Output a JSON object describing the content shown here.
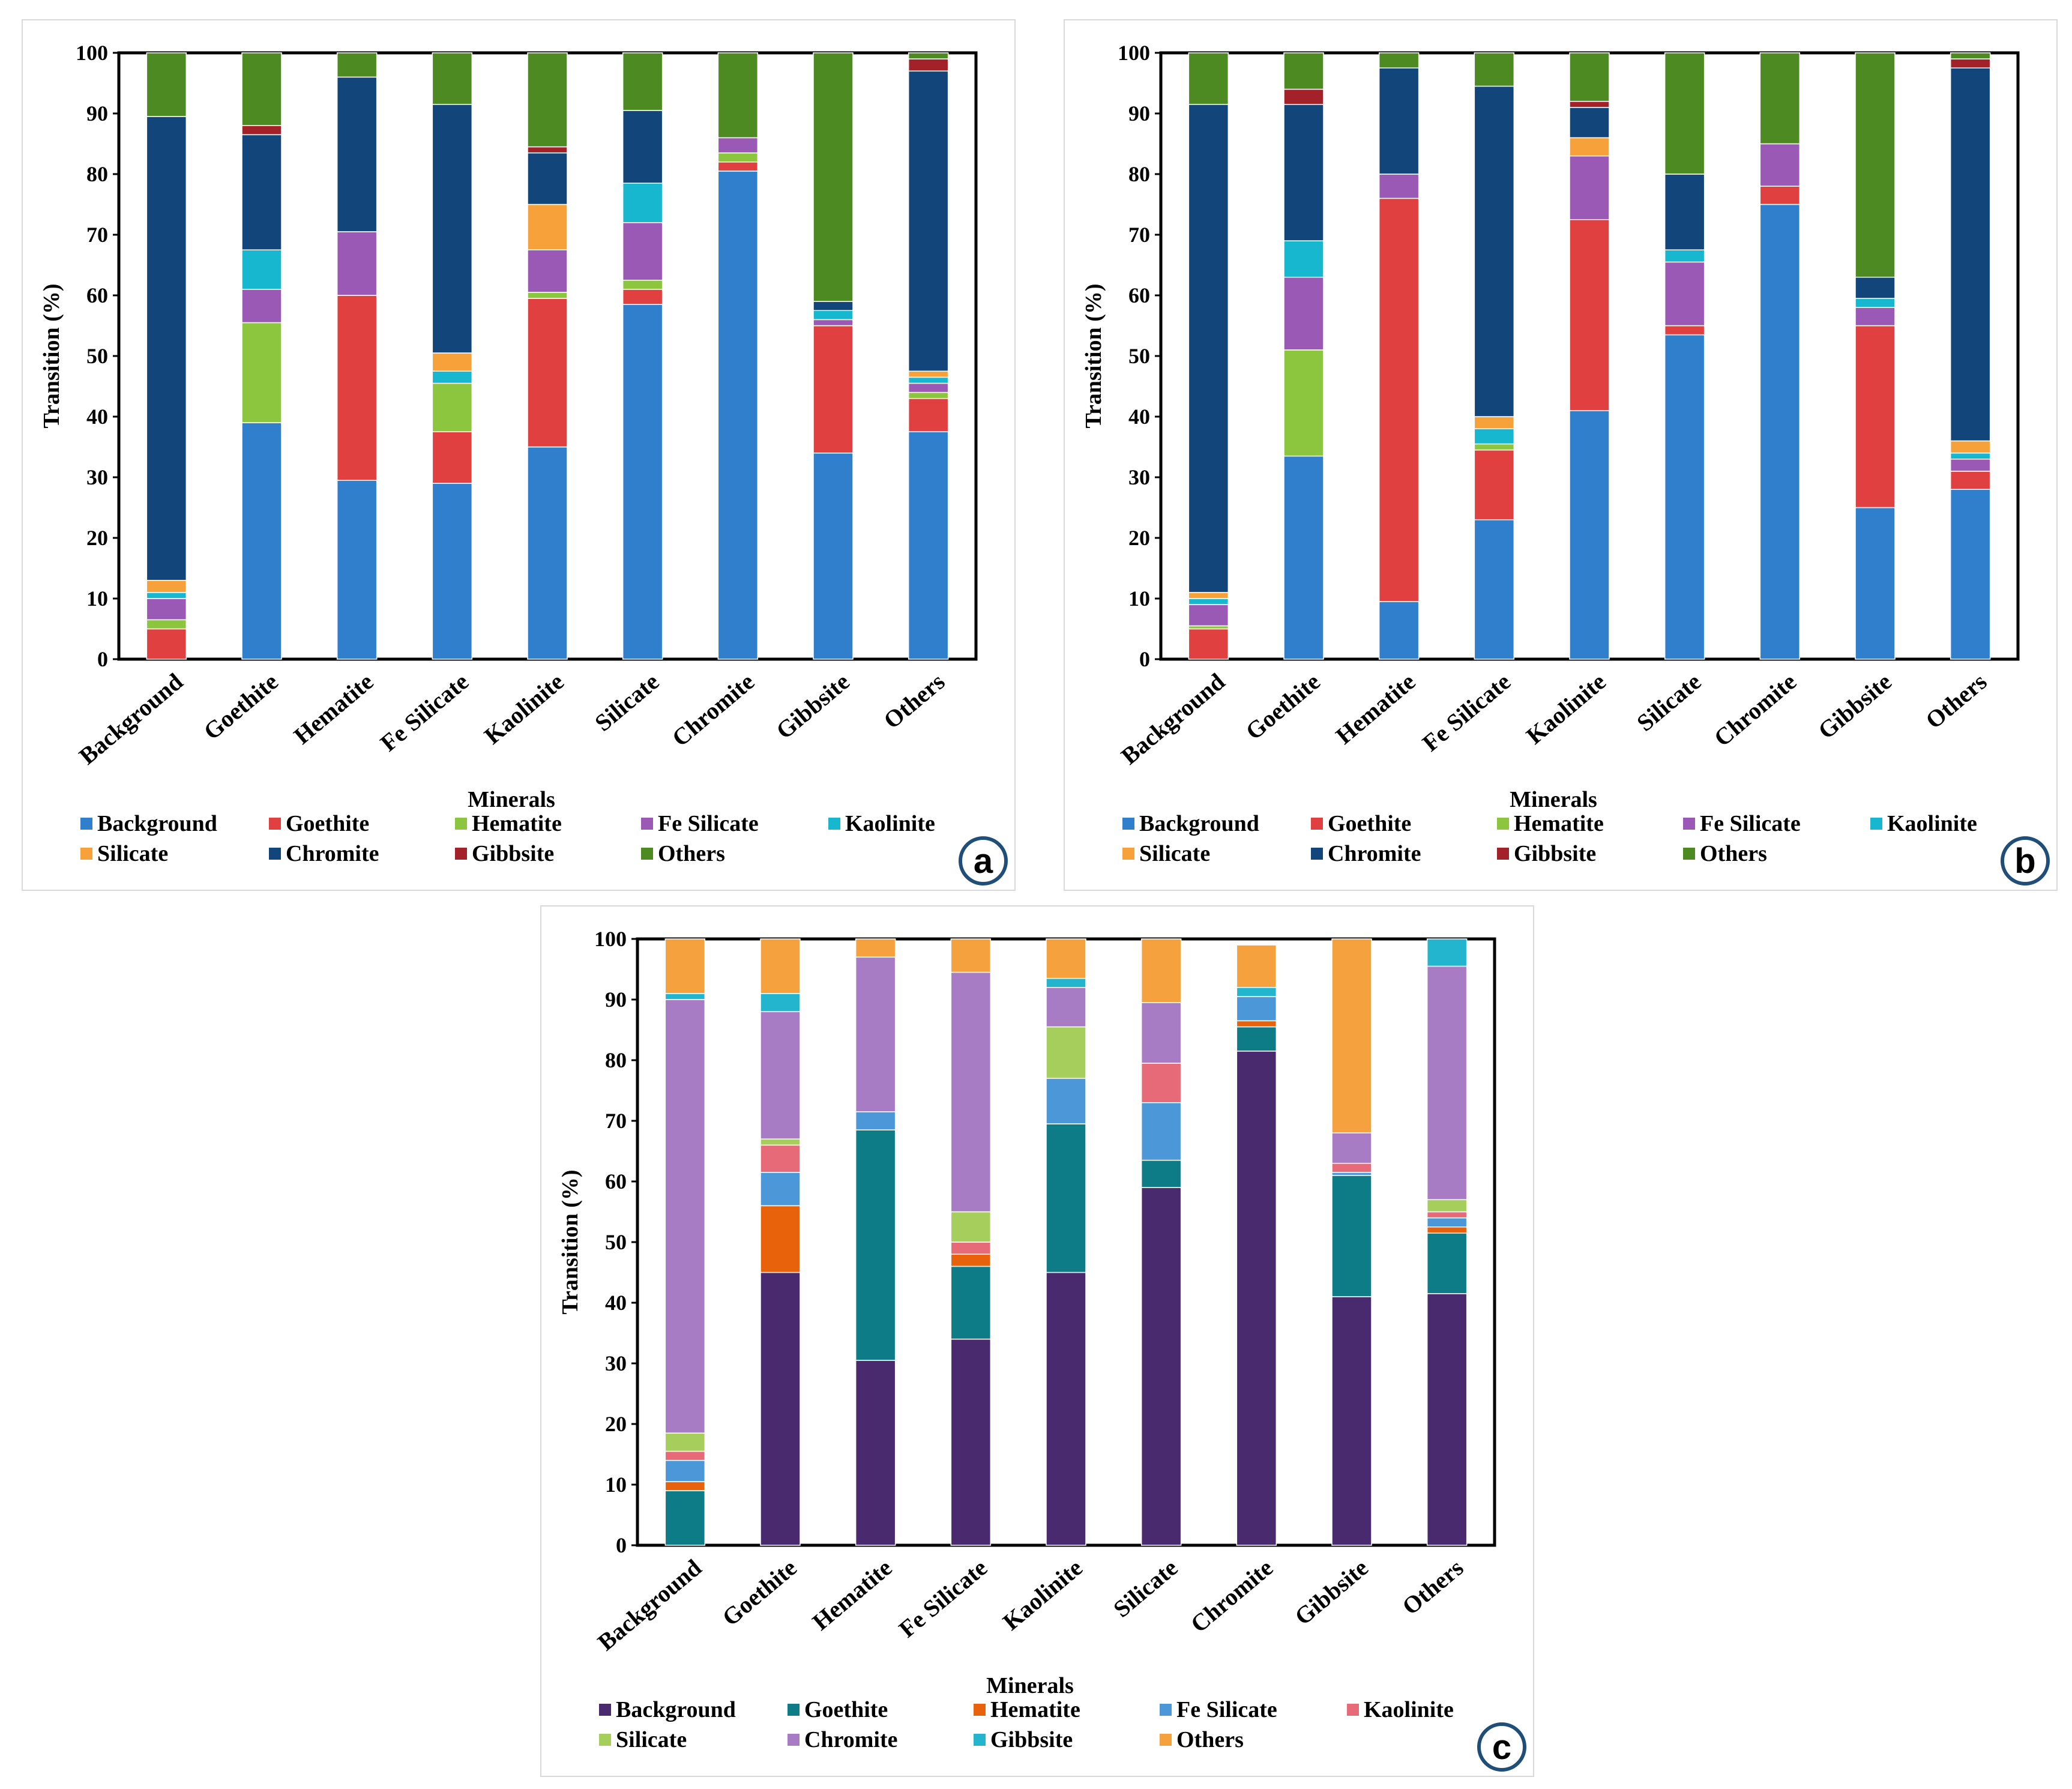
{
  "chart_data": [
    {
      "id": "a",
      "type": "bar",
      "stacked": true,
      "panel_label": "a",
      "xlabel": "Minerals",
      "ylabel": "Transition (%)",
      "ylim": [
        0,
        100
      ],
      "yticks": [
        0,
        10,
        20,
        30,
        40,
        50,
        60,
        70,
        80,
        90,
        100
      ],
      "categories": [
        "Background",
        "Goethite",
        "Hematite",
        "Fe Silicate",
        "Kaolinite",
        "Silicate",
        "Chromite",
        "Gibbsite",
        "Others"
      ],
      "series": [
        {
          "name": "Background",
          "color": "#2F7FCC",
          "values": [
            0,
            39,
            29.5,
            29,
            35,
            58.5,
            80.5,
            34,
            37.5
          ]
        },
        {
          "name": "Goethite",
          "color": "#E04040",
          "values": [
            5,
            0,
            30.5,
            8.5,
            24.5,
            2.5,
            1.5,
            21,
            5.5
          ]
        },
        {
          "name": "Hematite",
          "color": "#8CC63F",
          "values": [
            1.5,
            16.5,
            0,
            8,
            1,
            1.5,
            1.5,
            0,
            1
          ]
        },
        {
          "name": "Fe Silicate",
          "color": "#9B59B6",
          "values": [
            3.5,
            5.5,
            10.5,
            0,
            7,
            9.5,
            2.5,
            1,
            1.5
          ]
        },
        {
          "name": "Kaolinite",
          "color": "#17B7CF",
          "values": [
            1,
            6.5,
            0,
            2,
            0,
            6.5,
            0,
            1.5,
            1
          ]
        },
        {
          "name": "Silicate",
          "color": "#F7A13A",
          "values": [
            2,
            0,
            0,
            3,
            7.5,
            0,
            0,
            0,
            1
          ]
        },
        {
          "name": "Chromite",
          "color": "#12457A",
          "values": [
            76.5,
            19,
            25.5,
            41,
            8.5,
            12,
            0,
            1.5,
            49.5
          ]
        },
        {
          "name": "Gibbsite",
          "color": "#A3222A",
          "values": [
            0,
            1.5,
            0,
            0,
            1,
            0,
            0,
            0,
            2
          ]
        },
        {
          "name": "Others",
          "color": "#4E8A22",
          "values": [
            10.5,
            12,
            4,
            8.5,
            15.5,
            9.5,
            14,
            41,
            1
          ]
        }
      ],
      "legend": [
        "Background",
        "Goethite",
        "Hematite",
        "Fe Silicate",
        "Kaolinite",
        "Silicate",
        "Chromite",
        "Gibbsite",
        "Others"
      ]
    },
    {
      "id": "b",
      "type": "bar",
      "stacked": true,
      "panel_label": "b",
      "xlabel": "Minerals",
      "ylabel": "Transition (%)",
      "ylim": [
        0,
        100
      ],
      "yticks": [
        0,
        10,
        20,
        30,
        40,
        50,
        60,
        70,
        80,
        90,
        100
      ],
      "categories": [
        "Background",
        "Goethite",
        "Hematite",
        "Fe Silicate",
        "Kaolinite",
        "Silicate",
        "Chromite",
        "Gibbsite",
        "Others"
      ],
      "series": [
        {
          "name": "Background",
          "color": "#2F7FCC",
          "values": [
            0,
            33.5,
            9.5,
            23,
            41,
            53.5,
            75,
            25,
            28
          ]
        },
        {
          "name": "Goethite",
          "color": "#E04040",
          "values": [
            5,
            0,
            66.5,
            11.5,
            31.5,
            1.5,
            3,
            30,
            3
          ]
        },
        {
          "name": "Hematite",
          "color": "#8CC63F",
          "values": [
            0.5,
            17.5,
            0,
            1,
            0,
            0,
            0,
            0,
            0
          ]
        },
        {
          "name": "Fe Silicate",
          "color": "#9B59B6",
          "values": [
            3.5,
            12,
            4,
            0,
            10.5,
            10.5,
            7,
            3,
            2
          ]
        },
        {
          "name": "Kaolinite",
          "color": "#17B7CF",
          "values": [
            1,
            6,
            0,
            2.5,
            0,
            2,
            0,
            1.5,
            1
          ]
        },
        {
          "name": "Silicate",
          "color": "#F7A13A",
          "values": [
            1,
            0,
            0,
            2,
            3,
            0,
            0,
            0,
            2
          ]
        },
        {
          "name": "Chromite",
          "color": "#12457A",
          "values": [
            80.5,
            22.5,
            17.5,
            54.5,
            5,
            12.5,
            0,
            3.5,
            61.5
          ]
        },
        {
          "name": "Gibbsite",
          "color": "#A3222A",
          "values": [
            0,
            2.5,
            0,
            0,
            1,
            0,
            0,
            0,
            1.5
          ]
        },
        {
          "name": "Others",
          "color": "#4E8A22",
          "values": [
            8.5,
            6,
            2.5,
            5.5,
            8,
            20,
            15,
            37,
            1
          ]
        }
      ],
      "legend": [
        "Background",
        "Goethite",
        "Hematite",
        "Fe Silicate",
        "Kaolinite",
        "Silicate",
        "Chromite",
        "Gibbsite",
        "Others"
      ]
    },
    {
      "id": "c",
      "type": "bar",
      "stacked": true,
      "panel_label": "c",
      "xlabel": "Minerals",
      "ylabel": "Transition (%)",
      "ylim": [
        0,
        100
      ],
      "yticks": [
        0,
        10,
        20,
        30,
        40,
        50,
        60,
        70,
        80,
        90,
        100
      ],
      "categories": [
        "Background",
        "Goethite",
        "Hematite",
        "Fe Silicate",
        "Kaolinite",
        "Silicate",
        "Chromite",
        "Gibbsite",
        "Others"
      ],
      "series": [
        {
          "name": "Background",
          "color": "#4A2A6E",
          "values": [
            0,
            45,
            30.5,
            34,
            45,
            59,
            81.5,
            41,
            41.5
          ]
        },
        {
          "name": "Goethite",
          "color": "#0E7C86",
          "values": [
            9,
            0,
            38,
            12,
            24.5,
            4.5,
            4,
            20,
            10
          ]
        },
        {
          "name": "Hematite",
          "color": "#E8620C",
          "values": [
            1.5,
            11,
            0,
            2,
            0,
            0,
            1,
            0,
            1
          ]
        },
        {
          "name": "Fe Silicate",
          "color": "#4C97D8",
          "values": [
            3.5,
            5.5,
            3,
            0,
            7.5,
            9.5,
            4,
            0.5,
            1.5
          ]
        },
        {
          "name": "Kaolinite",
          "color": "#E66A78",
          "values": [
            1.5,
            4.5,
            0,
            2,
            0,
            6.5,
            0,
            1.5,
            1
          ]
        },
        {
          "name": "Silicate",
          "color": "#A6CE5C",
          "values": [
            3,
            1,
            0,
            5,
            8.5,
            0,
            0,
            0,
            2
          ]
        },
        {
          "name": "Chromite",
          "color": "#A87CC4",
          "values": [
            71.5,
            21,
            25.5,
            39.5,
            6.5,
            10,
            0,
            5,
            38.5
          ]
        },
        {
          "name": "Gibbsite",
          "color": "#23B5CE",
          "values": [
            1,
            3,
            0,
            0,
            1.5,
            0,
            1.5,
            0,
            4.5
          ]
        },
        {
          "name": "Others",
          "color": "#F5A13E",
          "values": [
            9,
            9,
            3,
            5.5,
            6.5,
            10.5,
            7,
            32,
            0
          ]
        }
      ],
      "legend": [
        "Background",
        "Goethite",
        "Hematite",
        "Fe Silicate",
        "Kaolinite",
        "Silicate",
        "Chromite",
        "Gibbsite",
        "Others"
      ]
    }
  ]
}
